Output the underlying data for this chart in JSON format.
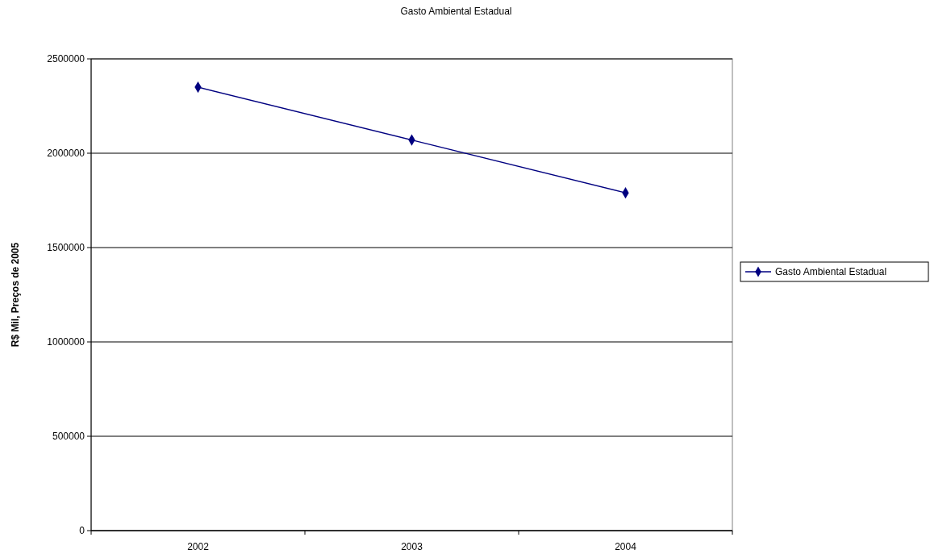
{
  "chart_data": {
    "type": "line",
    "title": "Gasto Ambiental Estadual",
    "ylabel": "R$ Mil, Preços de 2005",
    "categories": [
      "2002",
      "2003",
      "2004"
    ],
    "series": [
      {
        "name": "Gasto Ambiental Estadual",
        "color": "#000080",
        "values": [
          2350000,
          2070000,
          1790000
        ]
      }
    ],
    "ylim": [
      0,
      2500000
    ],
    "yticks": [
      0,
      500000,
      1000000,
      1500000,
      2000000,
      2500000
    ],
    "grid": "y",
    "legend": "right",
    "marker": "diamond",
    "line_style": "solid"
  }
}
